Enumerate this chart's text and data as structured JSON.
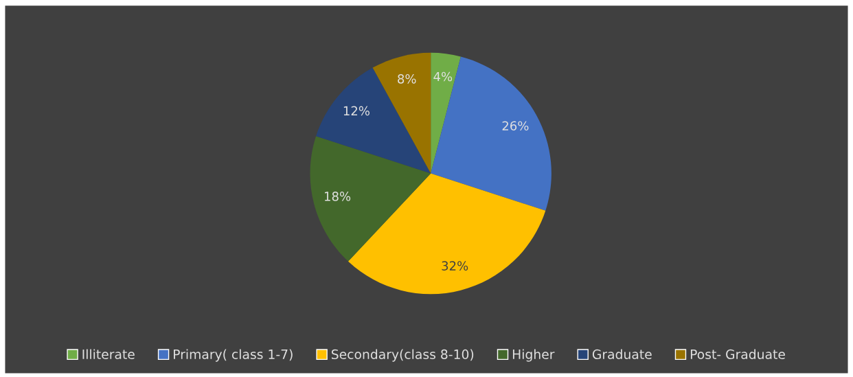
{
  "chart_data": {
    "type": "pie",
    "categories": [
      "Illiterate",
      "Primary( class 1-7)",
      "Secondary(class 8-10)",
      "Higher",
      "Graduate",
      "Post- Graduate"
    ],
    "values": [
      4,
      26,
      32,
      18,
      12,
      8
    ],
    "value_labels": [
      "4%",
      "26%",
      "32%",
      "18%",
      "12%",
      "8%"
    ],
    "colors": [
      "#70ad47",
      "#4472c4",
      "#ffc000",
      "#43682b",
      "#264478",
      "#997300"
    ],
    "legend": "bottom"
  }
}
